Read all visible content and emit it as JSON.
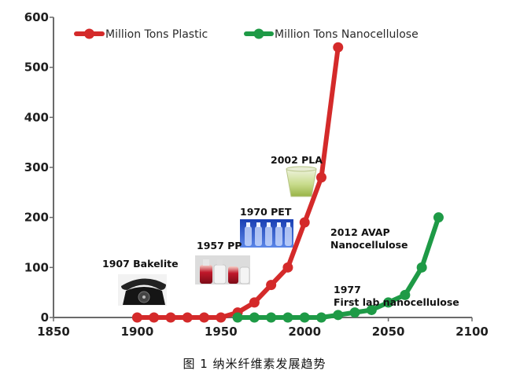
{
  "chart_data": {
    "type": "line",
    "title": "",
    "xlabel": "",
    "ylabel": "",
    "xlim": [
      1850,
      2100
    ],
    "ylim": [
      0,
      600
    ],
    "x_ticks": [
      "1850",
      "1900",
      "1950",
      "2000",
      "2050",
      "2100"
    ],
    "y_ticks": [
      "0",
      "100",
      "200",
      "300",
      "400",
      "500",
      "600"
    ],
    "grid": false,
    "legend_position": "top",
    "series": [
      {
        "name": "Million Tons Plastic",
        "color": "#d42a2a",
        "x": [
          1900,
          1910,
          1920,
          1930,
          1940,
          1950,
          1960,
          1970,
          1980,
          1990,
          2000,
          2010,
          2020
        ],
        "y": [
          0,
          0,
          0,
          0,
          0,
          0,
          10,
          30,
          65,
          100,
          190,
          280,
          540
        ]
      },
      {
        "name": "Million Tons Nanocellulose",
        "color": "#1e9a46",
        "x": [
          1960,
          1970,
          1980,
          1990,
          2000,
          2010,
          2020,
          2030,
          2040,
          2050,
          2060,
          2070,
          2080
        ],
        "y": [
          0,
          0,
          0,
          0,
          0,
          0,
          5,
          10,
          15,
          30,
          45,
          100,
          200
        ]
      }
    ],
    "annotations": [
      {
        "key": "bakelite",
        "text": "1907 Bakelite",
        "image": "telephone"
      },
      {
        "key": "pp",
        "text": "1957 PP",
        "image": "red-bottles"
      },
      {
        "key": "pet",
        "text": "1970 PET",
        "image": "pet-bottles"
      },
      {
        "key": "pla",
        "text": "2002 PLA",
        "image": "pla-cup"
      },
      {
        "key": "avap",
        "text": "2012 AVAP\nNanocellulose"
      },
      {
        "key": "first",
        "text": "1977\nFirst lab nanocellulose"
      }
    ]
  },
  "caption": "图 1  纳米纤维素发展趋势"
}
